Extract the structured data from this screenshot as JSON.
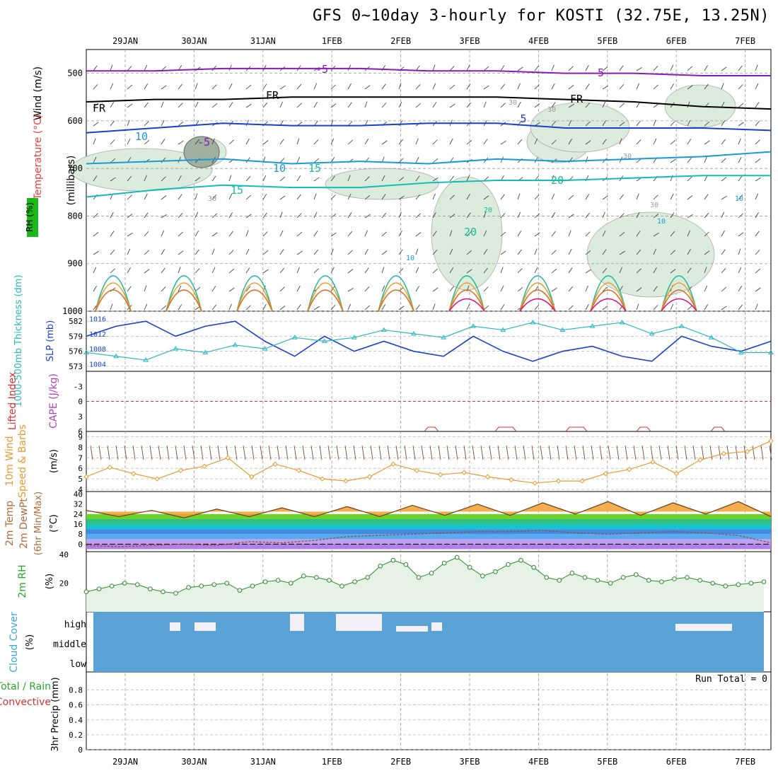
{
  "title": "GFS 0~10day 3-hourly for KOSTI (32.75E, 13.25N)",
  "colors": {
    "purple": "#8a1ab8",
    "blue": "#1a3fd0",
    "sky": "#1a9ad8",
    "teal": "#14bcb8",
    "green": "#1ab896",
    "orange": "#e8a030",
    "dorange": "#e06820",
    "magenta": "#e0107a",
    "rhfill": "#dcecdc",
    "cloud": "#5ba3d6",
    "dewpt": "#8b5a3c"
  },
  "chart_data": {
    "type": "line",
    "dates": [
      "29JAN",
      "30JAN",
      "31JAN",
      "1FEB",
      "2FEB",
      "3FEB",
      "4FEB",
      "5FEB",
      "6FEB",
      "7FEB"
    ],
    "panels": [
      {
        "id": "upper-air",
        "labels": {
          "wind": "Wind (m/s)",
          "temp": "Temperature (°C)",
          "rh": "RH (%)",
          "unit": "(millibars)"
        },
        "yticks": [
          500,
          600,
          700,
          800,
          900,
          1000
        ],
        "contour_labels": [
          "-5",
          "-5",
          "FR",
          "FR",
          "FR",
          "-5",
          "5",
          "10",
          "10",
          "15",
          "15",
          "20",
          "20",
          "10",
          "10",
          "30",
          "30",
          "30",
          "30",
          "30",
          "20",
          "10"
        ],
        "isotherms": [
          {
            "name": "-5",
            "color": "purple",
            "y": [
              495,
              495,
              490,
              490,
              490,
              495,
              495,
              500,
              500,
              505,
              505
            ]
          },
          {
            "name": "FR",
            "color": "black",
            "y": [
              560,
              555,
              555,
              550,
              550,
              550,
              550,
              555,
              560,
              570,
              575
            ]
          },
          {
            "name": "5",
            "color": "blue",
            "y": [
              625,
              615,
              605,
              610,
              610,
              605,
              605,
              615,
              615,
              615,
              620
            ]
          },
          {
            "name": "10",
            "color": "sky",
            "y": [
              690,
              685,
              680,
              690,
              685,
              690,
              680,
              685,
              680,
              675,
              665
            ]
          },
          {
            "name": "15",
            "color": "teal",
            "y": [
              760,
              745,
              735,
              740,
              740,
              730,
              725,
              725,
              720,
              715,
              715
            ]
          }
        ]
      },
      {
        "id": "thickness-slp",
        "labels": {
          "thickness": "1000-500mb Thickness (dm)",
          "slp": "SLP (mb)"
        },
        "yticks_left": [
          573,
          576,
          579,
          582
        ],
        "yticks_right": [
          1004,
          1008,
          1012,
          1016
        ],
        "thickness": [
          579,
          581,
          582,
          579,
          581,
          582,
          578,
          575,
          579,
          576,
          578,
          576,
          575,
          579,
          576,
          574,
          576,
          577,
          575,
          574,
          579,
          577,
          576,
          578
        ],
        "slp": [
          1007,
          1006,
          1005,
          1008,
          1007,
          1009,
          1008,
          1011,
          1010,
          1011,
          1013,
          1012,
          1011,
          1014,
          1013,
          1015,
          1013,
          1014,
          1015,
          1012,
          1014,
          1011,
          1007,
          1007
        ]
      },
      {
        "id": "cape-li",
        "labels": {
          "li": "Lifted Index",
          "cape": "CAPE (J/kg)"
        },
        "yticks": [
          -3,
          0,
          3,
          6
        ]
      },
      {
        "id": "wind10m",
        "labels": {
          "main": "10m Wind",
          "sub": "Speed & Barbs",
          "unit": "(m/s)"
        },
        "yticks": [
          4,
          5,
          6,
          7,
          8,
          9
        ],
        "speed": [
          5.2,
          6.1,
          5.5,
          5.0,
          5.8,
          6.2,
          7.0,
          5.2,
          6.4,
          5.8,
          5.0,
          4.8,
          5.2,
          6.4,
          5.8,
          5.4,
          5.6,
          5.2,
          4.9,
          4.6,
          4.8,
          4.8,
          5.5,
          5.9,
          6.6,
          5.5,
          6.8,
          7.4,
          7.6,
          8.6
        ]
      },
      {
        "id": "temp2m",
        "labels": {
          "main": "2m Temp",
          "sub": "2m DewPt",
          "minmax": "(6hr Min/Max)",
          "unit": "(°C)"
        },
        "yticks": [
          0,
          8,
          16,
          24,
          32,
          40
        ],
        "temp": [
          27,
          22,
          27,
          21,
          28,
          22,
          29,
          22,
          30,
          22,
          31,
          23,
          32,
          23,
          33,
          24,
          34,
          23,
          33,
          24,
          34,
          22
        ],
        "dewpt": [
          -1,
          -2,
          -1,
          0,
          -1,
          2,
          1,
          3,
          6,
          7,
          8,
          9,
          10,
          10,
          11,
          9,
          8,
          9,
          10,
          9,
          7,
          1
        ]
      },
      {
        "id": "rh2m",
        "labels": {
          "main": "2m RH",
          "unit": "(%)"
        },
        "yticks": [
          20,
          40
        ],
        "rh": [
          14,
          16,
          18,
          20,
          19,
          16,
          14,
          13,
          17,
          18,
          19,
          20,
          15,
          18,
          21,
          22,
          20,
          25,
          24,
          22,
          18,
          21,
          24,
          32,
          36,
          33,
          24,
          27,
          34,
          38,
          31,
          25,
          28,
          33,
          36,
          31,
          24,
          22,
          27,
          24,
          22,
          20,
          24,
          26,
          22,
          21,
          23,
          24,
          22,
          20,
          18,
          19,
          20,
          21
        ]
      },
      {
        "id": "cloud",
        "labels": {
          "main": "Cloud Cover",
          "unit": "(%)"
        },
        "levels": [
          "high",
          "middle",
          "low"
        ]
      },
      {
        "id": "precip",
        "labels": {
          "main": "3hr Precip (mm)",
          "total": "Total / Rain",
          "conv": "Convective"
        },
        "yticks": [
          0,
          0.2,
          0.4,
          0.6,
          0.8
        ],
        "run_total": "Run Total = 0"
      }
    ]
  }
}
